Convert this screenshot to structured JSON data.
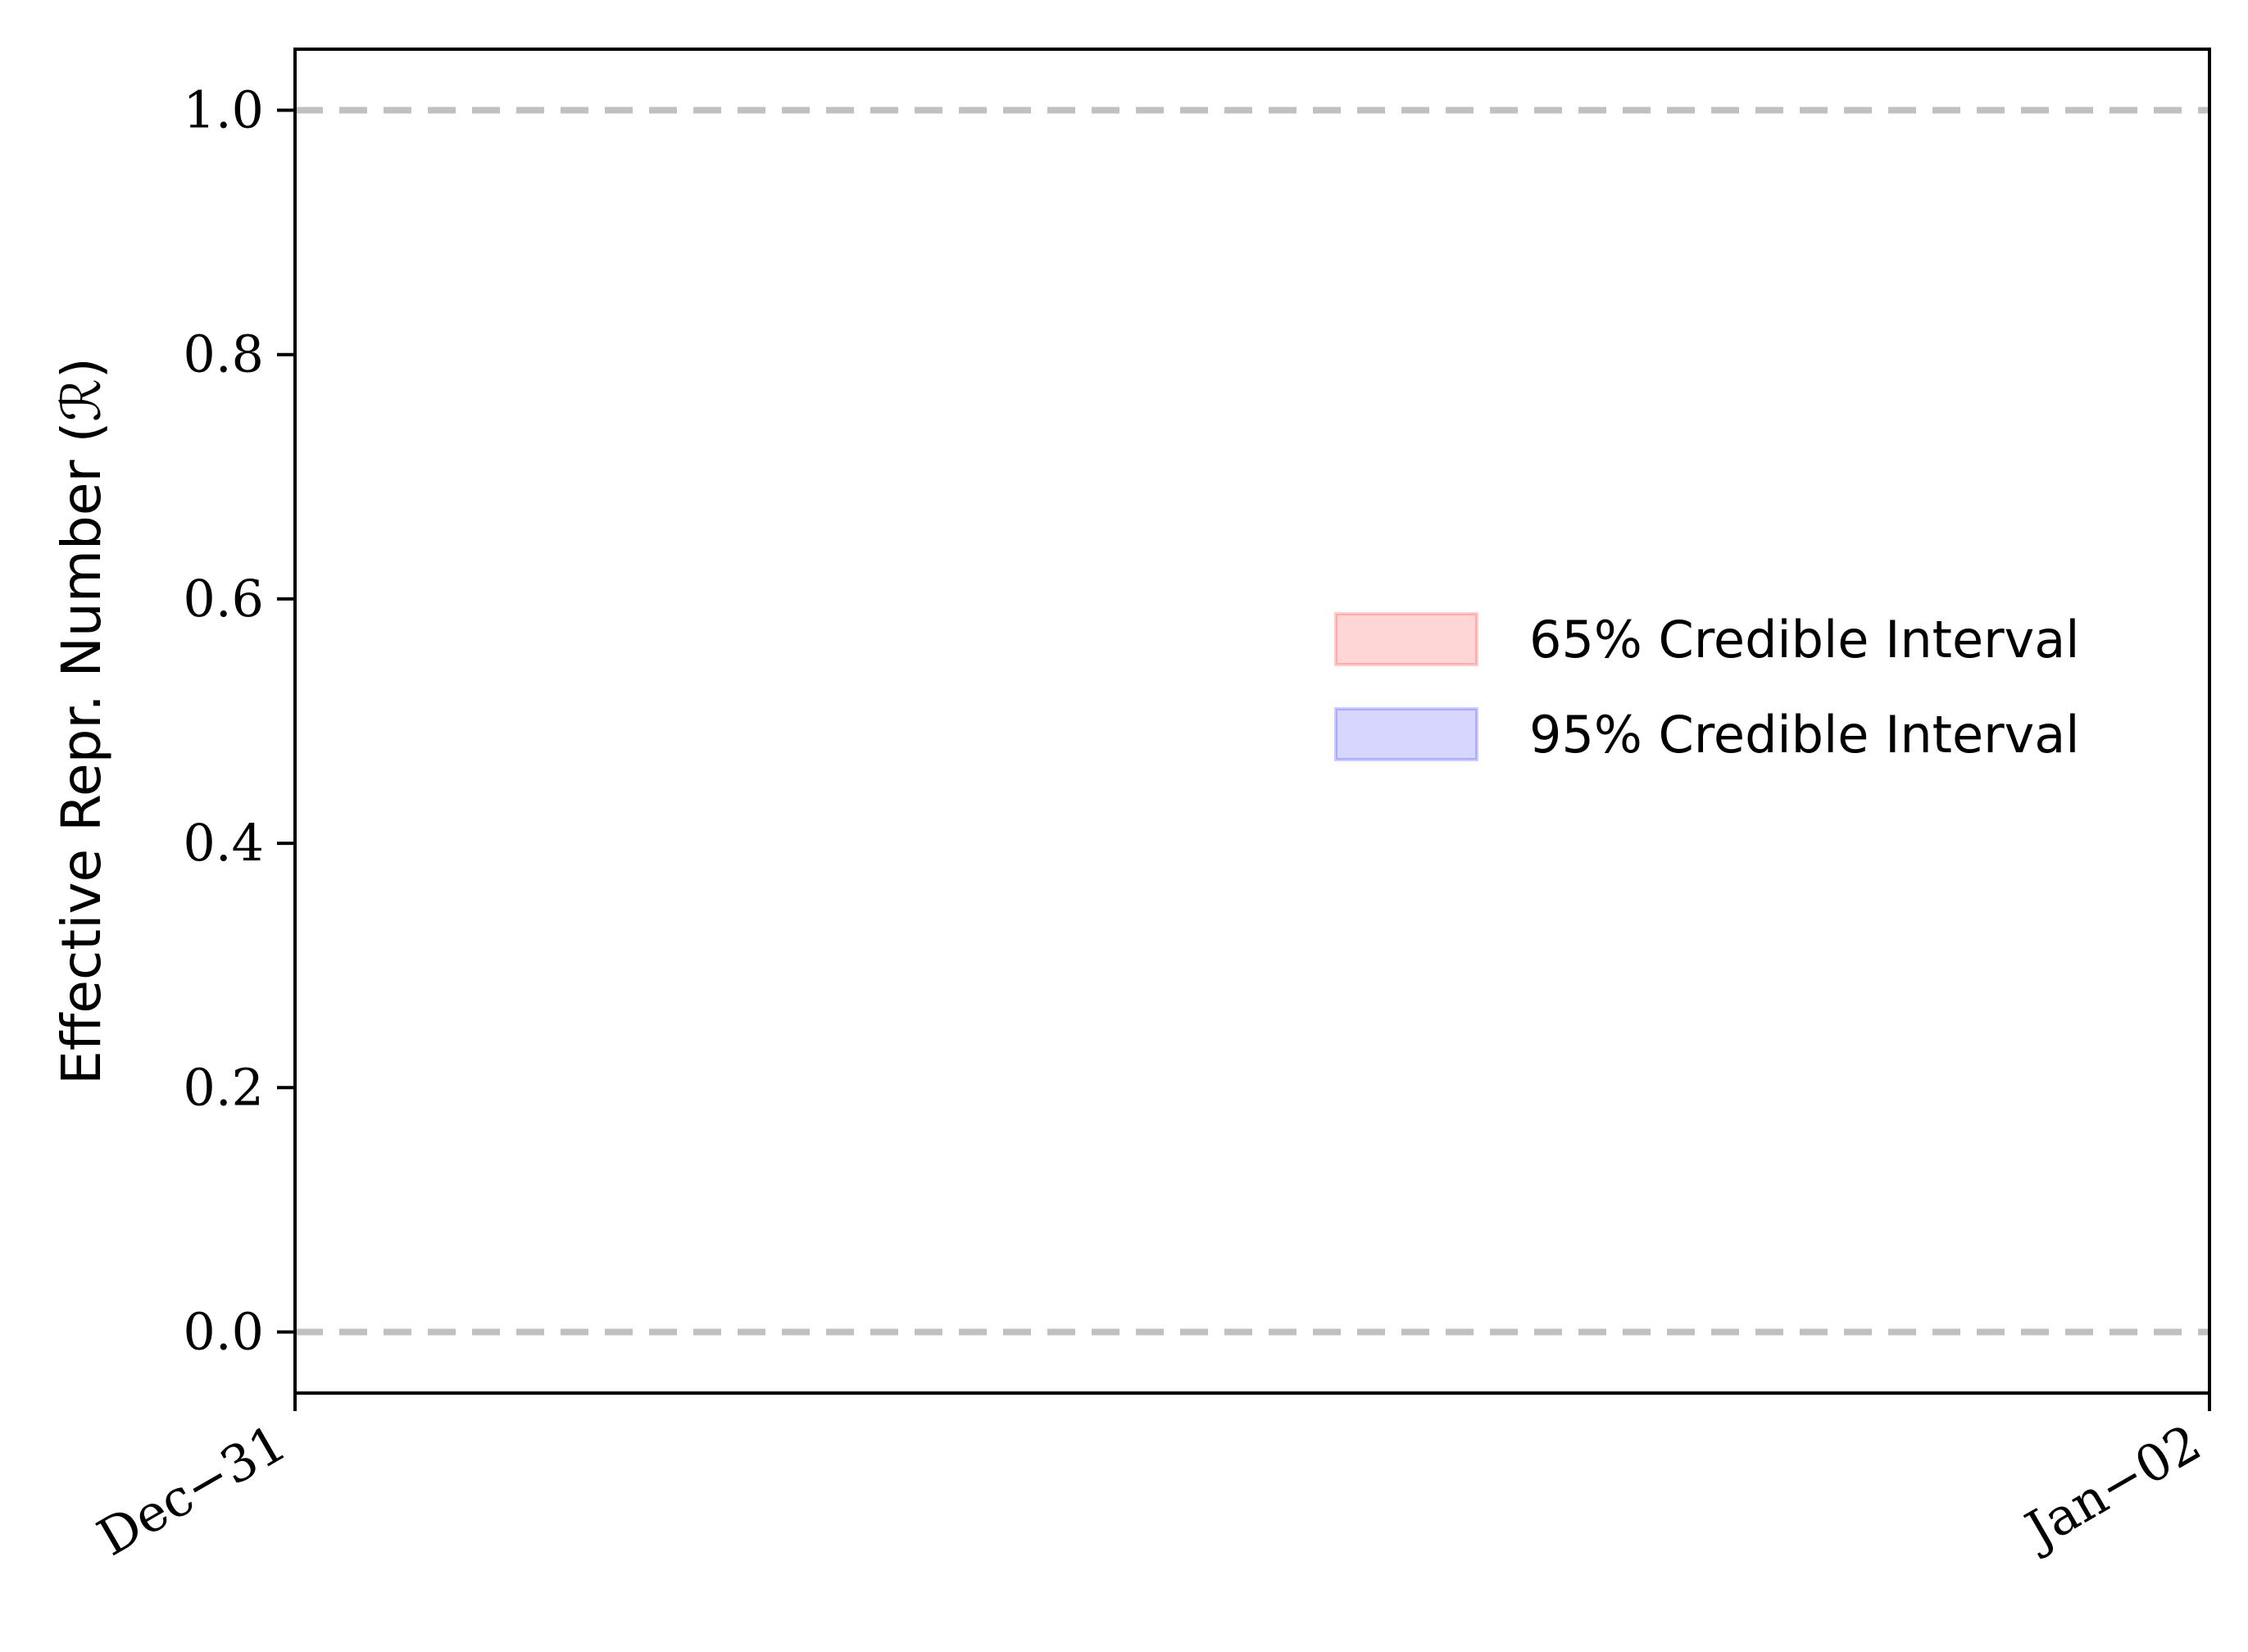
{
  "chart_data": {
    "type": "area",
    "title": "",
    "xlabel": "",
    "ylabel": "Effective Repr. Number (ℛ)",
    "x_ticks": [
      "Dec−31",
      "Jan−02"
    ],
    "y_ticks": [
      "0.0",
      "0.2",
      "0.4",
      "0.6",
      "0.8",
      "1.0"
    ],
    "y_tick_values": [
      0.0,
      0.2,
      0.4,
      0.6,
      0.8,
      1.0
    ],
    "ylim": [
      -0.05,
      1.05
    ],
    "reference_lines": [
      0.0,
      1.0
    ],
    "reference_line_color": "#c0c0c0",
    "legend_position": "center-right",
    "series": [
      {
        "name": "65% Credible Interval",
        "color": "#ff0000",
        "values": []
      },
      {
        "name": "95% Credible Interval",
        "color": "#0000ff",
        "values": []
      }
    ],
    "grid": false
  }
}
